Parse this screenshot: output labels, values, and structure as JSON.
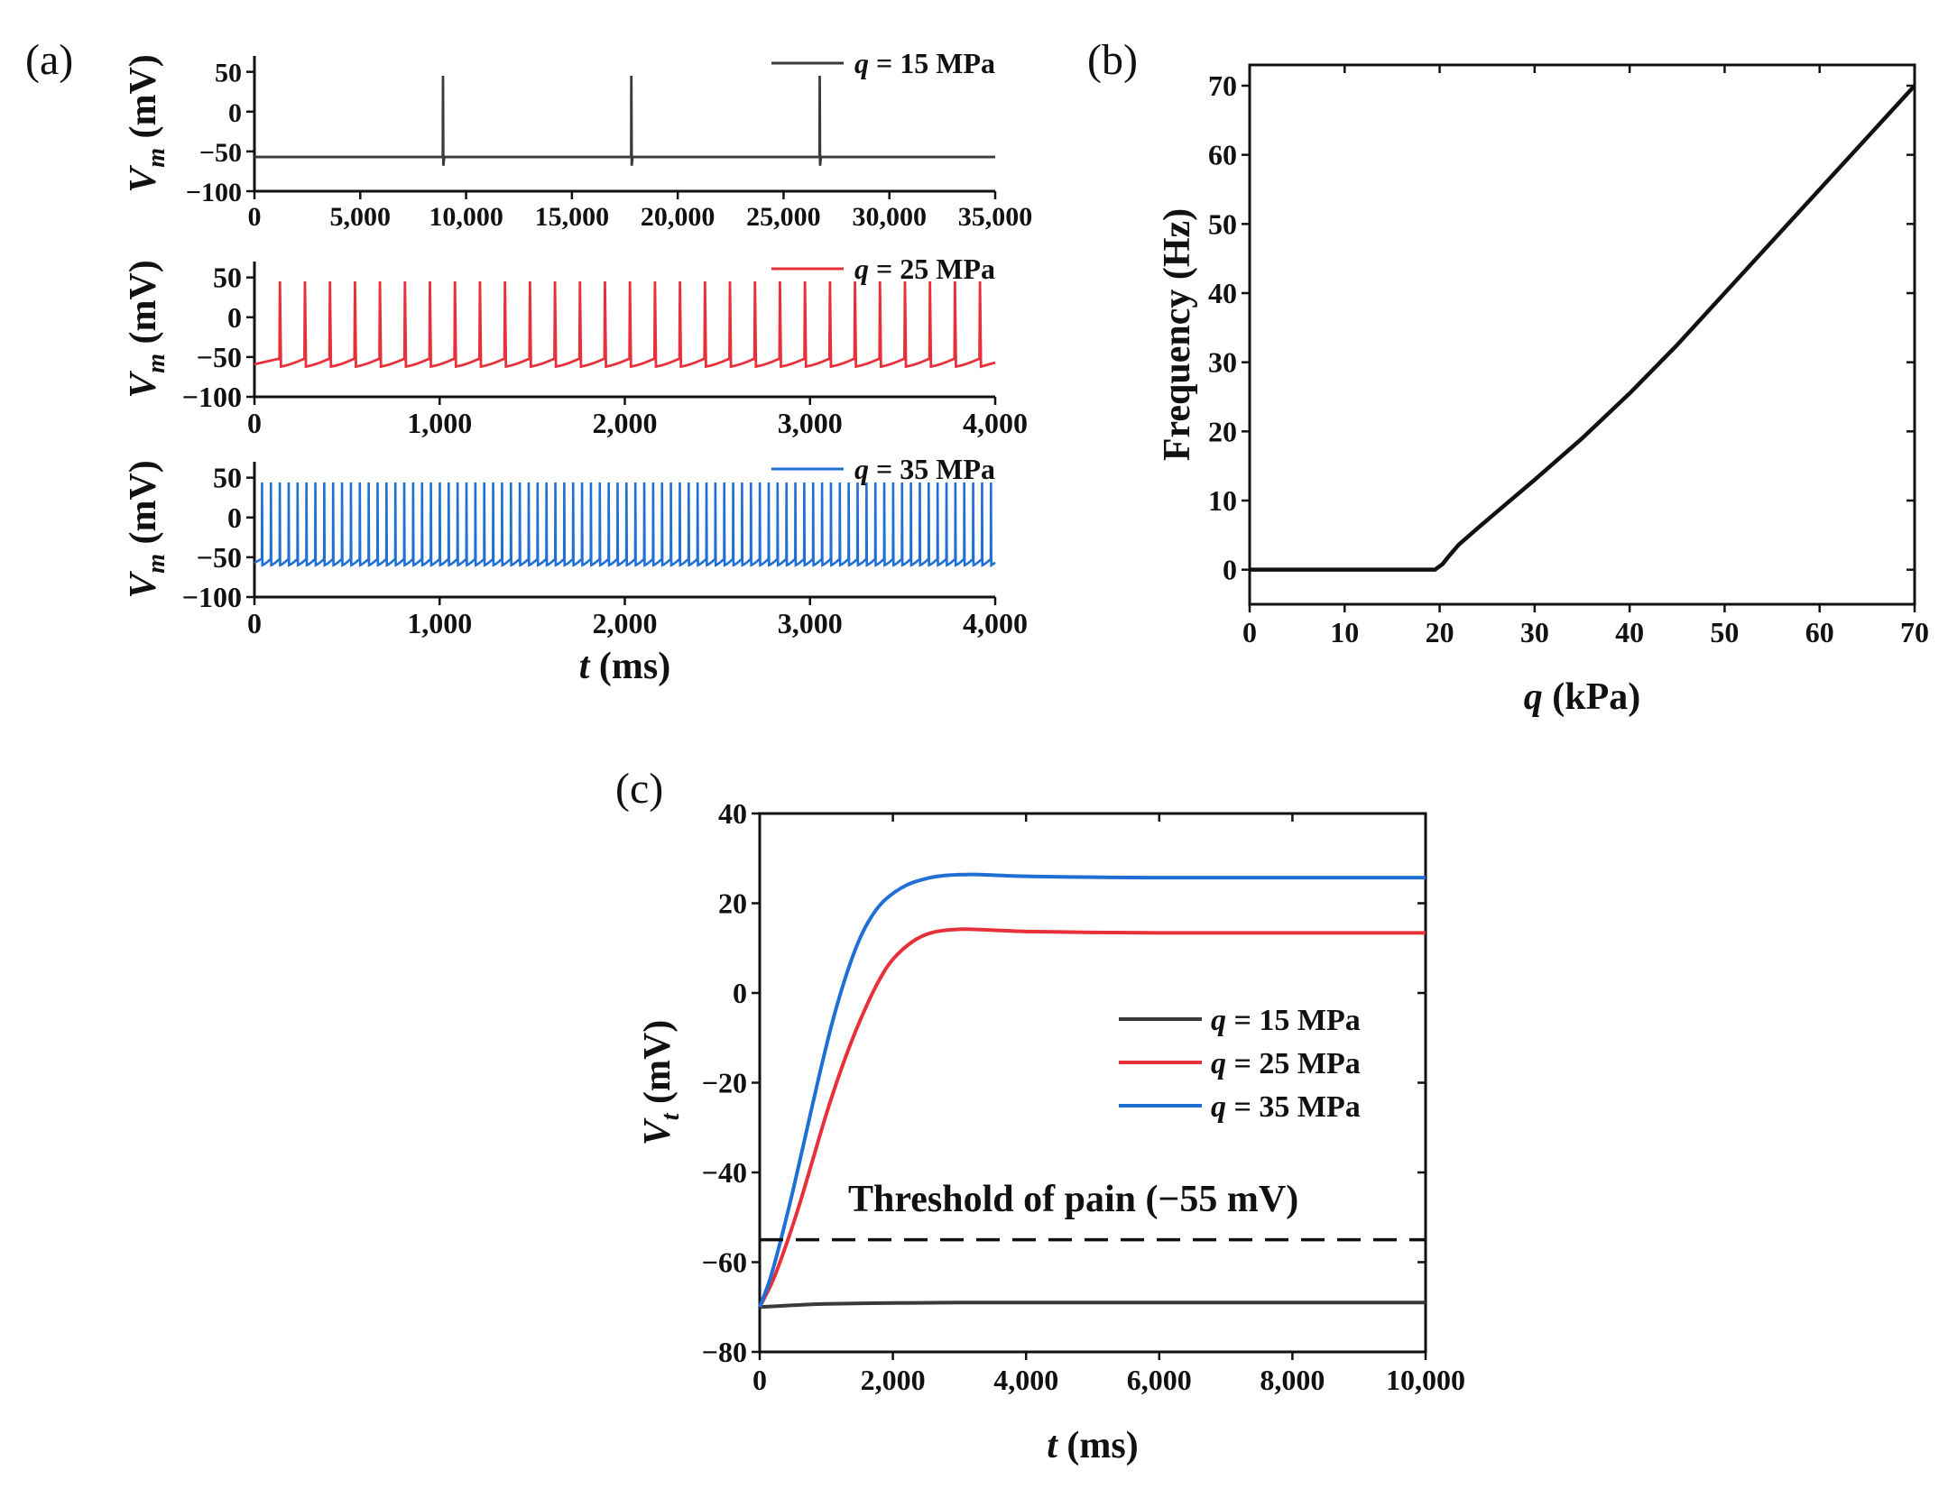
{
  "chart_data": [
    {
      "type": "line",
      "panel": "(a)",
      "title": "",
      "xlabel": "",
      "ylabel_main": "V",
      "ylabel_sub": "m",
      "ylabel_unit": " (mV)",
      "xlim": [
        0,
        35000
      ],
      "ylim": [
        -100,
        70
      ],
      "xticks": [
        0,
        5000,
        10000,
        15000,
        20000,
        25000,
        30000,
        35000
      ],
      "xtick_labels": [
        "0",
        "5,000",
        "10,000",
        "15,000",
        "20,000",
        "25,000",
        "30,000",
        "35,000"
      ],
      "yticks": [
        50,
        0,
        -50,
        -100
      ],
      "ytick_labels": [
        "50",
        "0",
        "−50",
        "−100"
      ],
      "series": [
        {
          "name_var": "q",
          "name_rest": " = 15 MPa",
          "color": "#3a3a3a",
          "rest_mV": -57,
          "peak_mV": 45,
          "trough_mV": -68,
          "spike_times_ms": [
            8900,
            17800,
            26700
          ]
        }
      ],
      "legend_position": "top-right"
    },
    {
      "type": "line",
      "panel": "(a)",
      "xlabel": "",
      "ylabel_main": "V",
      "ylabel_sub": "m",
      "ylabel_unit": " (mV)",
      "xlim": [
        0,
        4000
      ],
      "ylim": [
        -100,
        70
      ],
      "xticks": [
        0,
        1000,
        2000,
        3000,
        4000
      ],
      "xtick_labels": [
        "0",
        "1,000",
        "2,000",
        "3,000",
        "4,000"
      ],
      "yticks": [
        50,
        0,
        -50,
        -100
      ],
      "ytick_labels": [
        "50",
        "0",
        "−50",
        "−100"
      ],
      "series": [
        {
          "name_var": "q",
          "name_rest": " = 25 MPa",
          "color": "#e8303a",
          "reset_mV": -62,
          "pre_spike_mV": -52,
          "peak_mV": 45,
          "spike_interval_ms": 135,
          "first_spike_ms": 135
        }
      ],
      "legend_position": "top-right"
    },
    {
      "type": "line",
      "panel": "(a)",
      "xlabel_main": "t",
      "xlabel_unit": " (ms)",
      "ylabel_main": "V",
      "ylabel_sub": "m",
      "ylabel_unit": " (mV)",
      "xlim": [
        0,
        4000
      ],
      "ylim": [
        -100,
        70
      ],
      "xticks": [
        0,
        1000,
        2000,
        3000,
        4000
      ],
      "xtick_labels": [
        "0",
        "1,000",
        "2,000",
        "3,000",
        "4,000"
      ],
      "yticks": [
        50,
        0,
        -50,
        -100
      ],
      "ytick_labels": [
        "50",
        "0",
        "−50",
        "−100"
      ],
      "series": [
        {
          "name_var": "q",
          "name_rest": " = 35 MPa",
          "color": "#1f6fd6",
          "reset_mV": -60,
          "pre_spike_mV": -52,
          "peak_mV": 44,
          "spike_interval_ms": 48,
          "first_spike_ms": 40
        }
      ],
      "legend_position": "top-right"
    },
    {
      "type": "line",
      "panel": "(b)",
      "xlabel_main": "q",
      "xlabel_unit": " (kPa)",
      "ylabel": "Frequency (Hz)",
      "xlim": [
        0,
        70
      ],
      "ylim": [
        -5,
        73
      ],
      "xticks": [
        0,
        10,
        20,
        30,
        40,
        50,
        60,
        70
      ],
      "xtick_labels": [
        "0",
        "10",
        "20",
        "30",
        "40",
        "50",
        "60",
        "70"
      ],
      "yticks": [
        0,
        10,
        20,
        30,
        40,
        50,
        60,
        70
      ],
      "ytick_labels": [
        "0",
        "10",
        "20",
        "30",
        "40",
        "50",
        "60",
        "70"
      ],
      "series": [
        {
          "name": "frequency",
          "color": "#111111",
          "x": [
            0,
            19.5,
            20.3,
            21,
            22,
            24,
            27,
            30,
            35,
            40,
            45,
            50,
            55,
            60,
            65,
            70
          ],
          "y": [
            0,
            0,
            0.8,
            2,
            3.6,
            6,
            9.5,
            13,
            19,
            25.5,
            32.5,
            40,
            47.5,
            55,
            62.5,
            70
          ]
        }
      ]
    },
    {
      "type": "line",
      "panel": "(c)",
      "xlabel_main": "t",
      "xlabel_unit": " (ms)",
      "ylabel_main": "V",
      "ylabel_sub": "t",
      "ylabel_unit": " (mV)",
      "xlim": [
        0,
        10000
      ],
      "ylim": [
        -80,
        40
      ],
      "xticks": [
        0,
        2000,
        4000,
        6000,
        8000,
        10000
      ],
      "xtick_labels": [
        "0",
        "2,000",
        "4,000",
        "6,000",
        "8,000",
        "10,000"
      ],
      "yticks": [
        40,
        20,
        0,
        -20,
        -40,
        -60,
        -80
      ],
      "ytick_labels": [
        "40",
        "20",
        "0",
        "−20",
        "−40",
        "−60",
        "−80"
      ],
      "series": [
        {
          "name_var": "q",
          "name_rest": " = 15 MPa",
          "color": "#3a3a3a",
          "x": [
            0,
            500,
            1000,
            2000,
            3000,
            4000,
            6000,
            8000,
            10000
          ],
          "y": [
            -70,
            -69.6,
            -69.3,
            -69.1,
            -69,
            -69,
            -69,
            -69,
            -69
          ]
        },
        {
          "name_var": "q",
          "name_rest": " = 25 MPa",
          "color": "#e8303a",
          "x": [
            0,
            200,
            400,
            600,
            800,
            1000,
            1200,
            1400,
            1600,
            1800,
            2000,
            2300,
            2600,
            3000,
            3500,
            4000,
            5000,
            6000,
            8000,
            10000
          ],
          "y": [
            -70,
            -64,
            -56,
            -47,
            -37,
            -27,
            -18,
            -10,
            -3,
            3,
            7.5,
            11.5,
            13.5,
            14.2,
            14,
            13.7,
            13.5,
            13.4,
            13.4,
            13.4
          ]
        },
        {
          "name_var": "q",
          "name_rest": " = 35 MPa",
          "color": "#1f6fd6",
          "x": [
            0,
            150,
            300,
            500,
            700,
            900,
            1100,
            1300,
            1500,
            1700,
            1900,
            2200,
            2500,
            2800,
            3200,
            3600,
            4000,
            5000,
            6000,
            8000,
            10000
          ],
          "y": [
            -70,
            -64,
            -56,
            -44,
            -31,
            -18,
            -6,
            4,
            12,
            17.5,
            21,
            24,
            25.5,
            26.2,
            26.4,
            26.2,
            26,
            25.8,
            25.7,
            25.7,
            25.7
          ]
        }
      ],
      "threshold": {
        "label": "Threshold of pain (−55 mV)",
        "value_mV": -55
      },
      "legend_position": "center-right"
    }
  ],
  "panel_labels": {
    "a": "(a)",
    "b": "(b)",
    "c": "(c)"
  }
}
